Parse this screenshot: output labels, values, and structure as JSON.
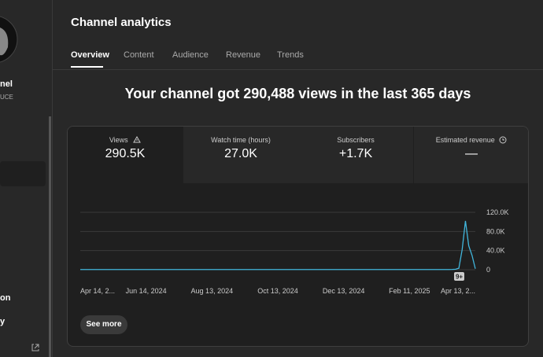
{
  "sidebar": {
    "channel_name": "nel",
    "channel_handle": "UCE",
    "nav_items": [
      "on",
      "y"
    ]
  },
  "header": {
    "title": "Channel analytics",
    "tabs": [
      "Overview",
      "Content",
      "Audience",
      "Revenue",
      "Trends"
    ]
  },
  "headline": "Your channel got 290,488 views in the last 365 days",
  "metrics": [
    {
      "label": "Views",
      "value": "290.5K"
    },
    {
      "label": "Watch time (hours)",
      "value": "27.0K"
    },
    {
      "label": "Subscribers",
      "value": "+1.7K"
    },
    {
      "label": "Estimated revenue",
      "value": "—"
    }
  ],
  "chart_data": {
    "type": "line",
    "color": "#41b6dc",
    "categories": [
      "Apr 14, 2...",
      null,
      null,
      null,
      null,
      null,
      null,
      null,
      null,
      null,
      null,
      null,
      null,
      null,
      null,
      null,
      null,
      null,
      null,
      null,
      "Jun 14, 2024",
      null,
      null,
      null,
      null,
      null,
      null,
      null,
      null,
      null,
      null,
      null,
      null,
      null,
      null,
      null,
      null,
      null,
      null,
      null,
      "Aug 13, 2024",
      null,
      null,
      null,
      null,
      null,
      null,
      null,
      null,
      null,
      null,
      null,
      null,
      null,
      null,
      null,
      null,
      null,
      null,
      null,
      "Oct 13, 2024",
      null,
      null,
      null,
      null,
      null,
      null,
      null,
      null,
      null,
      null,
      null,
      null,
      null,
      null,
      null,
      null,
      null,
      null,
      null,
      "Dec 13, 2024",
      null,
      null,
      null,
      null,
      null,
      null,
      null,
      null,
      null,
      null,
      null,
      null,
      null,
      null,
      null,
      null,
      null,
      null,
      null,
      "Feb 11, 2025",
      null,
      null,
      null,
      null,
      null,
      null,
      null,
      null,
      null,
      null,
      null,
      null,
      null,
      null,
      null,
      null,
      null,
      null,
      null,
      "Apr 13, 2..."
    ],
    "values": [
      400,
      400,
      400,
      400,
      400,
      400,
      400,
      400,
      400,
      400,
      400,
      400,
      400,
      400,
      400,
      400,
      400,
      400,
      400,
      400,
      400,
      400,
      400,
      400,
      400,
      400,
      400,
      400,
      400,
      400,
      400,
      400,
      400,
      400,
      400,
      400,
      400,
      400,
      400,
      400,
      400,
      400,
      400,
      400,
      400,
      400,
      400,
      400,
      400,
      400,
      400,
      400,
      400,
      400,
      400,
      400,
      400,
      400,
      400,
      400,
      400,
      400,
      400,
      400,
      400,
      400,
      400,
      400,
      400,
      400,
      400,
      400,
      400,
      400,
      400,
      400,
      400,
      400,
      400,
      400,
      400,
      400,
      400,
      400,
      400,
      400,
      400,
      400,
      400,
      400,
      400,
      400,
      400,
      400,
      400,
      400,
      400,
      400,
      400,
      400,
      400,
      400,
      400,
      400,
      400,
      400,
      400,
      400,
      400,
      400,
      400,
      400,
      400,
      600,
      1000,
      3000,
      42000,
      102000,
      50000,
      30000,
      2000
    ],
    "ylim": [
      0,
      120000
    ],
    "yticks": [
      0,
      {
        "value": 40000,
        "label": "40.0K"
      },
      {
        "value": 80000,
        "label": "80.0K"
      },
      {
        "value": 120000,
        "label": "120.0K"
      }
    ],
    "grid": true,
    "marker_badge": "9+"
  },
  "see_more": "See more"
}
